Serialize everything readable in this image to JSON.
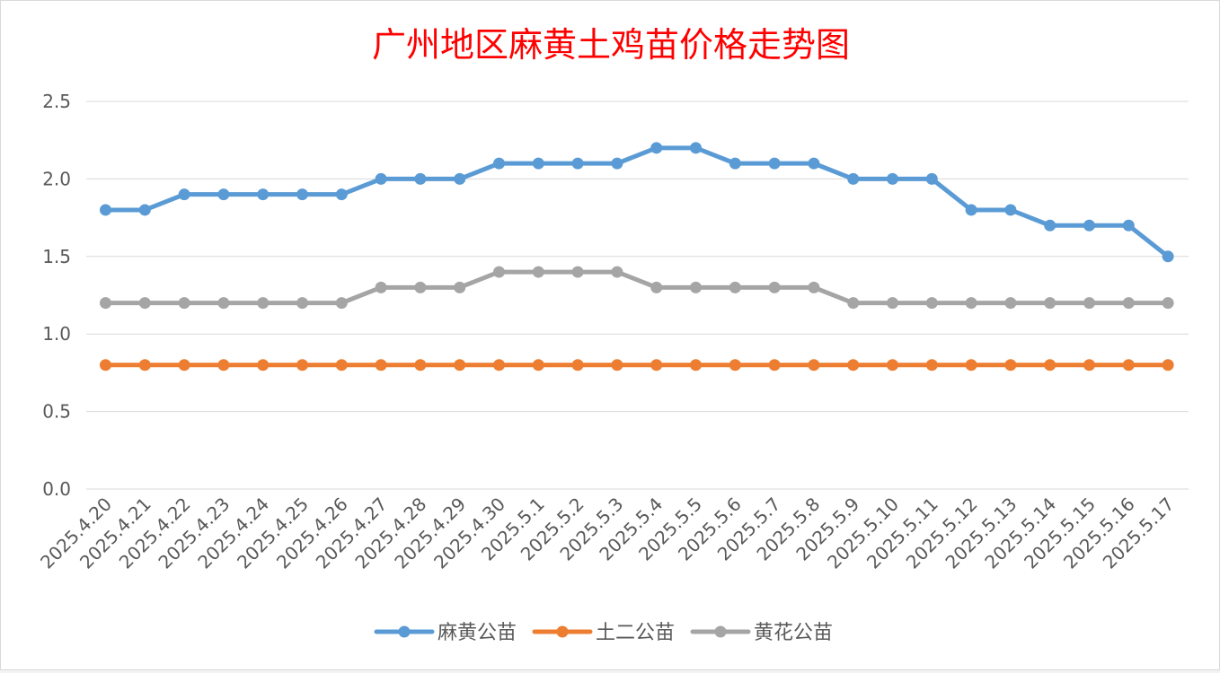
{
  "chart_data": {
    "type": "line",
    "title": "广州地区麻黄土鸡苗价格走势图",
    "categories": [
      "2025.4.20",
      "2025.4.21",
      "2025.4.22",
      "2025.4.23",
      "2025.4.24",
      "2025.4.25",
      "2025.4.26",
      "2025.4.27",
      "2025.4.28",
      "2025.4.29",
      "2025.4.30",
      "2025.5.1",
      "2025.5.2",
      "2025.5.3",
      "2025.5.4",
      "2025.5.5",
      "2025.5.6",
      "2025.5.7",
      "2025.5.8",
      "2025.5.9",
      "2025.5.10",
      "2025.5.11",
      "2025.5.12",
      "2025.5.13",
      "2025.5.14",
      "2025.5.15",
      "2025.5.16",
      "2025.5.17"
    ],
    "y_ticks": [
      "0.0",
      "0.5",
      "1.0",
      "1.5",
      "2.0",
      "2.5"
    ],
    "ylim": [
      0,
      2.5
    ],
    "grid": true,
    "legend_position": "bottom",
    "series": [
      {
        "name": "麻黄公苗",
        "color": "#5b9bd5",
        "values": [
          1.8,
          1.8,
          1.9,
          1.9,
          1.9,
          1.9,
          1.9,
          2.0,
          2.0,
          2.0,
          2.1,
          2.1,
          2.1,
          2.1,
          2.2,
          2.2,
          2.1,
          2.1,
          2.1,
          2.0,
          2.0,
          2.0,
          1.8,
          1.8,
          1.7,
          1.7,
          1.7,
          1.5
        ]
      },
      {
        "name": "土二公苗",
        "color": "#ed7d31",
        "values": [
          0.8,
          0.8,
          0.8,
          0.8,
          0.8,
          0.8,
          0.8,
          0.8,
          0.8,
          0.8,
          0.8,
          0.8,
          0.8,
          0.8,
          0.8,
          0.8,
          0.8,
          0.8,
          0.8,
          0.8,
          0.8,
          0.8,
          0.8,
          0.8,
          0.8,
          0.8,
          0.8,
          0.8
        ]
      },
      {
        "name": "黄花公苗",
        "color": "#a5a5a5",
        "values": [
          1.2,
          1.2,
          1.2,
          1.2,
          1.2,
          1.2,
          1.2,
          1.3,
          1.3,
          1.3,
          1.4,
          1.4,
          1.4,
          1.4,
          1.3,
          1.3,
          1.3,
          1.3,
          1.3,
          1.2,
          1.2,
          1.2,
          1.2,
          1.2,
          1.2,
          1.2,
          1.2,
          1.2
        ]
      }
    ]
  }
}
